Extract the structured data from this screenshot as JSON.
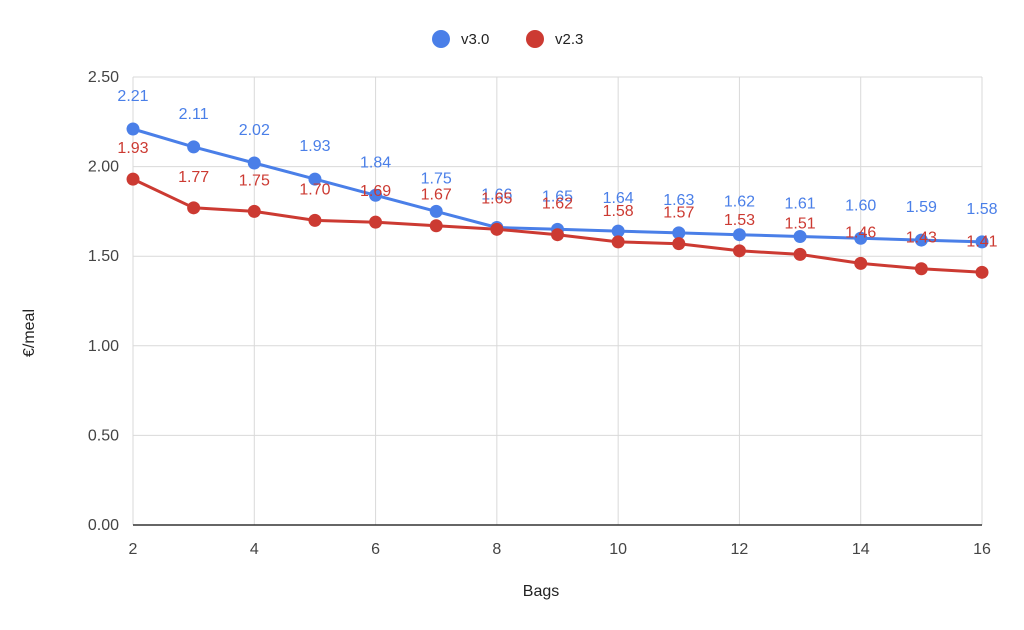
{
  "chart_data": {
    "type": "line",
    "title": "",
    "xlabel": "Bags",
    "ylabel": "€/meal",
    "xlim": [
      2,
      16
    ],
    "ylim": [
      0,
      2.5
    ],
    "x_ticks": [
      "2",
      "4",
      "6",
      "8",
      "10",
      "12",
      "14",
      "16"
    ],
    "y_ticks": [
      "0.00",
      "0.50",
      "1.00",
      "1.50",
      "2.00",
      "2.50"
    ],
    "grid": true,
    "legend_position": "top-center",
    "x": [
      2,
      3,
      4,
      5,
      6,
      7,
      8,
      9,
      10,
      11,
      12,
      13,
      14,
      15,
      16
    ],
    "series": [
      {
        "name": "v3.0",
        "color": "#4a7fe8",
        "values": [
          2.21,
          2.11,
          2.02,
          1.93,
          1.84,
          1.75,
          1.66,
          1.65,
          1.64,
          1.63,
          1.62,
          1.61,
          1.6,
          1.59,
          1.58
        ],
        "labels": [
          "2.21",
          "2.11",
          "2.02",
          "1.93",
          "1.84",
          "1.75",
          "1.66",
          "1.65",
          "1.64",
          "1.63",
          "1.62",
          "1.61",
          "1.60",
          "1.59",
          "1.58"
        ]
      },
      {
        "name": "v2.3",
        "color": "#cc3a32",
        "values": [
          1.93,
          1.77,
          1.75,
          1.7,
          1.69,
          1.67,
          1.65,
          1.62,
          1.58,
          1.57,
          1.53,
          1.51,
          1.46,
          1.43,
          1.41
        ],
        "labels": [
          "1.93",
          "1.77",
          "1.75",
          "1.70",
          "1.69",
          "1.67",
          "1.65",
          "1.62",
          "1.58",
          "1.57",
          "1.53",
          "1.51",
          "1.46",
          "1.43",
          "1.41"
        ]
      }
    ]
  }
}
